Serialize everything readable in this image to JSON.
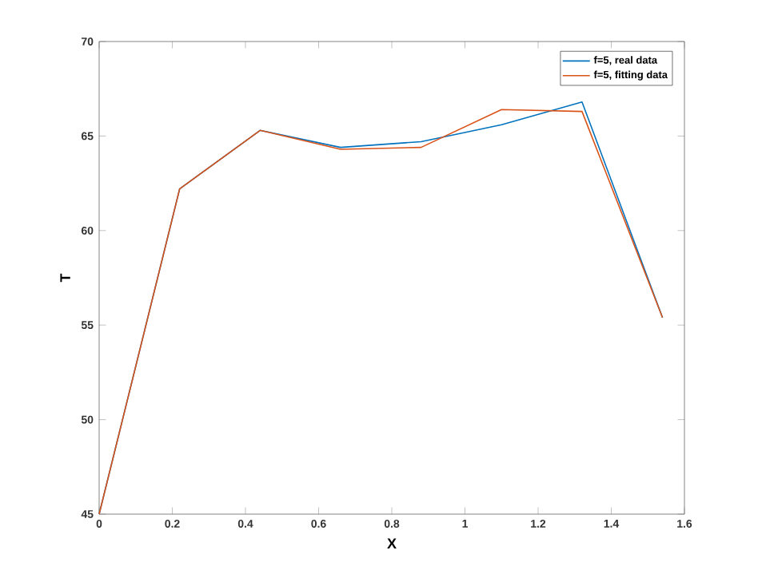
{
  "chart_data": {
    "type": "line",
    "xlabel": "X",
    "ylabel": "T",
    "x": [
      0,
      0.22,
      0.44,
      0.66,
      0.88,
      1.1,
      1.32,
      1.54
    ],
    "series": [
      {
        "name": "f=5, real data",
        "color": "#0072bd",
        "values": [
          45,
          62.2,
          65.3,
          64.4,
          64.7,
          65.6,
          66.8,
          55.4
        ]
      },
      {
        "name": "f=5, fitting data",
        "color": "#d95319",
        "values": [
          45,
          62.2,
          65.3,
          64.3,
          64.4,
          66.4,
          66.3,
          55.4
        ]
      }
    ],
    "xlim": [
      0,
      1.6
    ],
    "ylim": [
      45,
      70
    ],
    "xticks": [
      0,
      0.2,
      0.4,
      0.6,
      0.8,
      1,
      1.2,
      1.4,
      1.6
    ],
    "yticks": [
      45,
      50,
      55,
      60,
      65,
      70
    ],
    "legend": "top right",
    "grid": false
  }
}
